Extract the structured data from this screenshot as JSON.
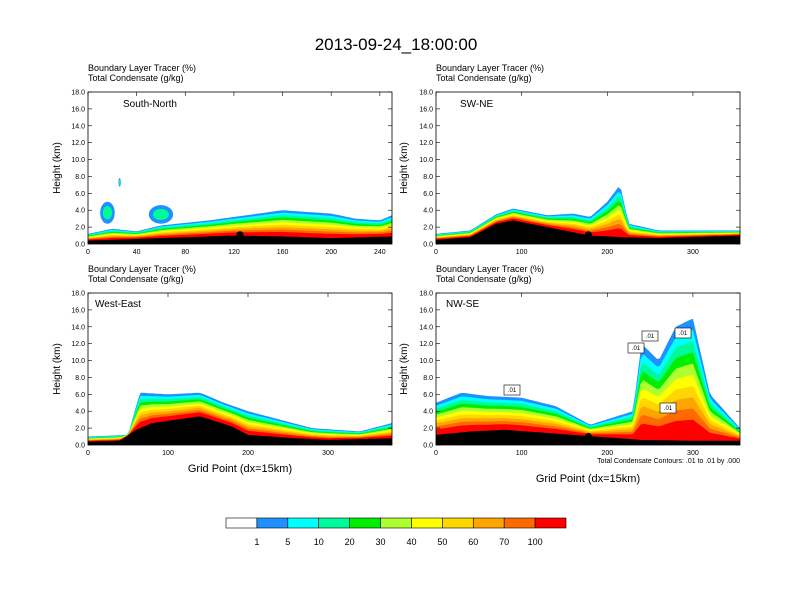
{
  "title": "2013-09-24_18:00:00",
  "field_labels": {
    "tracer": "Boundary Layer Tracer   (%)",
    "condensate": "Total Condensate   (g/kg)"
  },
  "colors": {
    "scale": [
      "#ffffff",
      "#1e90ff",
      "#00ffff",
      "#00fa9a",
      "#00ee00",
      "#adff2f",
      "#ffff00",
      "#ffd700",
      "#ffa500",
      "#ff6a00",
      "#ff0000"
    ],
    "contour": "#000000",
    "terrain": "#000000"
  },
  "colorbar": {
    "levels": [
      "1",
      "5",
      "10",
      "20",
      "30",
      "40",
      "50",
      "60",
      "70",
      "100"
    ]
  },
  "chart_data": [
    {
      "type": "heatmap",
      "name": "South-North",
      "xlim": [
        0,
        250
      ],
      "ylim": [
        0,
        18
      ],
      "xticks": [
        "0",
        "40",
        "80",
        "120",
        "160",
        "200",
        "240"
      ],
      "yticks": [
        "0.0",
        "2.0",
        "4.0",
        "6.0",
        "8.0",
        "10.0",
        "12.0",
        "14.0",
        "16.0",
        "18.0"
      ],
      "ylabel": "Height (km)",
      "xlabel": "",
      "terrain_km": [
        [
          0,
          0.4
        ],
        [
          40,
          0.6
        ],
        [
          80,
          0.8
        ],
        [
          120,
          1.0
        ],
        [
          160,
          0.9
        ],
        [
          200,
          0.7
        ],
        [
          250,
          0.9
        ]
      ],
      "tracer_top_km": [
        [
          0,
          1.2
        ],
        [
          20,
          1.8
        ],
        [
          40,
          1.5
        ],
        [
          60,
          2.2
        ],
        [
          80,
          2.5
        ],
        [
          100,
          2.8
        ],
        [
          120,
          3.2
        ],
        [
          140,
          3.6
        ],
        [
          160,
          4.0
        ],
        [
          180,
          3.8
        ],
        [
          200,
          3.6
        ],
        [
          220,
          3.0
        ],
        [
          240,
          2.8
        ],
        [
          250,
          3.4
        ]
      ],
      "cloud_patches": [
        {
          "x": [
            10,
            22
          ],
          "y": [
            2.4,
            5.0
          ]
        },
        {
          "x": [
            50,
            70
          ],
          "y": [
            2.4,
            4.6
          ]
        },
        {
          "x": [
            25,
            27
          ],
          "y": [
            6.8,
            7.8
          ]
        }
      ],
      "station_point": [
        125,
        1.1
      ],
      "contour_labels": []
    },
    {
      "type": "heatmap",
      "name": "SW-NE",
      "xlim": [
        0,
        355
      ],
      "ylim": [
        0,
        18
      ],
      "xticks": [
        "0",
        "100",
        "200",
        "300"
      ],
      "yticks": [
        "0.0",
        "2.0",
        "4.0",
        "6.0",
        "8.0",
        "10.0",
        "12.0",
        "14.0",
        "16.0",
        "18.0"
      ],
      "ylabel": "Height (km)",
      "xlabel": "",
      "terrain_km": [
        [
          0,
          0.5
        ],
        [
          40,
          0.8
        ],
        [
          70,
          2.4
        ],
        [
          90,
          2.8
        ],
        [
          130,
          2.0
        ],
        [
          180,
          1.0
        ],
        [
          220,
          0.8
        ],
        [
          260,
          0.7
        ],
        [
          355,
          1.0
        ]
      ],
      "tracer_top_km": [
        [
          0,
          1.2
        ],
        [
          40,
          1.6
        ],
        [
          70,
          3.5
        ],
        [
          90,
          4.2
        ],
        [
          130,
          3.4
        ],
        [
          160,
          3.6
        ],
        [
          180,
          3.2
        ],
        [
          200,
          5.0
        ],
        [
          215,
          7.0
        ],
        [
          225,
          2.4
        ],
        [
          260,
          1.6
        ],
        [
          355,
          1.6
        ]
      ],
      "cloud_patches": [],
      "station_point": [
        178,
        1.1
      ],
      "contour_labels": []
    },
    {
      "type": "heatmap",
      "name": "West-East",
      "xlim": [
        0,
        380
      ],
      "ylim": [
        0,
        18
      ],
      "xticks": [
        "0",
        "100",
        "200",
        "300"
      ],
      "yticks": [
        "0.0",
        "2.0",
        "4.0",
        "6.0",
        "8.0",
        "10.0",
        "12.0",
        "14.0",
        "16.0",
        "18.0"
      ],
      "ylabel": "Height (km)",
      "xlabel": "Grid Point (dx=15km)",
      "terrain_km": [
        [
          0,
          0.4
        ],
        [
          40,
          0.5
        ],
        [
          60,
          1.8
        ],
        [
          80,
          2.6
        ],
        [
          140,
          3.4
        ],
        [
          180,
          2.2
        ],
        [
          200,
          1.2
        ],
        [
          260,
          0.8
        ],
        [
          300,
          0.6
        ],
        [
          380,
          0.8
        ]
      ],
      "tracer_top_km": [
        [
          0,
          1.0
        ],
        [
          50,
          1.2
        ],
        [
          65,
          6.2
        ],
        [
          100,
          6.0
        ],
        [
          140,
          6.2
        ],
        [
          170,
          5.0
        ],
        [
          200,
          4.0
        ],
        [
          240,
          3.0
        ],
        [
          280,
          2.0
        ],
        [
          340,
          1.6
        ],
        [
          380,
          2.6
        ]
      ],
      "cloud_patches": [],
      "station_point": [
        193,
        1.0
      ],
      "contour_labels": []
    },
    {
      "type": "heatmap",
      "name": "NW-SE",
      "xlim": [
        0,
        355
      ],
      "ylim": [
        0,
        18
      ],
      "xticks": [
        "0",
        "100",
        "200",
        "300"
      ],
      "yticks": [
        "0.0",
        "2.0",
        "4.0",
        "6.0",
        "8.0",
        "10.0",
        "12.0",
        "14.0",
        "16.0",
        "18.0"
      ],
      "ylabel": "Height (km)",
      "xlabel": "Grid Point (dx=15km)",
      "terrain_km": [
        [
          0,
          1.2
        ],
        [
          40,
          1.6
        ],
        [
          80,
          1.8
        ],
        [
          120,
          1.5
        ],
        [
          160,
          1.2
        ],
        [
          200,
          0.9
        ],
        [
          240,
          0.6
        ],
        [
          300,
          0.5
        ],
        [
          355,
          0.5
        ]
      ],
      "tracer_top_km": [
        [
          0,
          5.0
        ],
        [
          30,
          6.2
        ],
        [
          60,
          5.8
        ],
        [
          100,
          5.6
        ],
        [
          140,
          4.6
        ],
        [
          180,
          2.4
        ],
        [
          230,
          4.0
        ],
        [
          240,
          12.0
        ],
        [
          260,
          10.0
        ],
        [
          280,
          14.0
        ],
        [
          300,
          15.0
        ],
        [
          320,
          6.0
        ],
        [
          355,
          2.0
        ]
      ],
      "cloud_patches": [],
      "station_point": [
        178,
        1.0
      ],
      "contour_labels": [
        ".01",
        ".01",
        ".01",
        ".01",
        ".01"
      ],
      "footnote": "Total Condensate Contours: .01 to .01 by .000"
    }
  ]
}
